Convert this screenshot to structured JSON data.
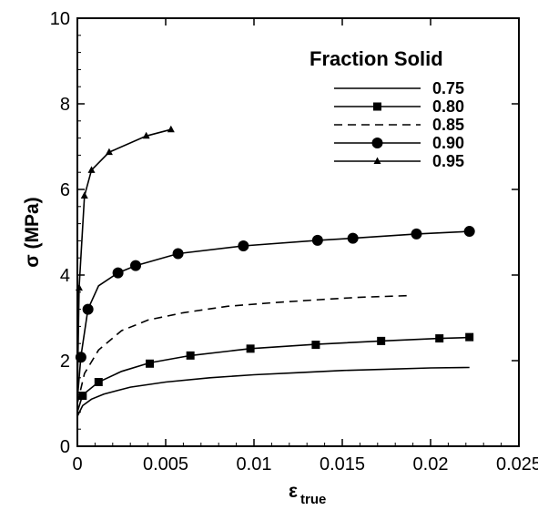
{
  "chart_data": {
    "type": "line",
    "xlabel": "ε",
    "xlabel_sub": "true",
    "ylabel": "σ (MPa)",
    "xlim": [
      0,
      0.025
    ],
    "ylim": [
      0,
      10
    ],
    "x_ticks": [
      "0",
      "0.005",
      "0.01",
      "0.015",
      "0.02",
      "0.025"
    ],
    "y_ticks": [
      "0",
      "2",
      "4",
      "6",
      "8",
      "10"
    ],
    "x_tick_values": [
      0,
      0.005,
      0.01,
      0.015,
      0.02,
      0.025
    ],
    "y_tick_values": [
      0,
      2,
      4,
      6,
      8,
      10
    ],
    "grid": false,
    "legend_title": "Fraction Solid",
    "legend_position": "top-right",
    "series": [
      {
        "name": "0.75",
        "marker": "none",
        "dash": "solid",
        "points": [
          [
            0,
            0.7
          ],
          [
            0.0003,
            0.95
          ],
          [
            0.0008,
            1.1
          ],
          [
            0.0015,
            1.22
          ],
          [
            0.003,
            1.38
          ],
          [
            0.005,
            1.5
          ],
          [
            0.0075,
            1.6
          ],
          [
            0.01,
            1.67
          ],
          [
            0.0125,
            1.72
          ],
          [
            0.015,
            1.77
          ],
          [
            0.0175,
            1.8
          ],
          [
            0.02,
            1.83
          ],
          [
            0.0222,
            1.84
          ]
        ],
        "marker_points": []
      },
      {
        "name": "0.80",
        "marker": "square",
        "dash": "solid",
        "points": [
          [
            0,
            0.8
          ],
          [
            0.0003,
            1.2
          ],
          [
            0.0012,
            1.5
          ],
          [
            0.0025,
            1.75
          ],
          [
            0.0041,
            1.95
          ],
          [
            0.0064,
            2.12
          ],
          [
            0.0098,
            2.28
          ],
          [
            0.0135,
            2.38
          ],
          [
            0.0172,
            2.46
          ],
          [
            0.0205,
            2.52
          ],
          [
            0.0222,
            2.54
          ]
        ],
        "marker_points": [
          [
            0.0003,
            1.18
          ],
          [
            0.0012,
            1.5
          ],
          [
            0.0041,
            1.93
          ],
          [
            0.0064,
            2.12
          ],
          [
            0.0098,
            2.28
          ],
          [
            0.0135,
            2.37
          ],
          [
            0.0172,
            2.46
          ],
          [
            0.0205,
            2.52
          ],
          [
            0.0222,
            2.55
          ]
        ]
      },
      {
        "name": "0.85",
        "marker": "none",
        "dash": "dashed",
        "points": [
          [
            0,
            1.0
          ],
          [
            0.0004,
            1.7
          ],
          [
            0.0012,
            2.25
          ],
          [
            0.0025,
            2.7
          ],
          [
            0.004,
            2.95
          ],
          [
            0.006,
            3.12
          ],
          [
            0.0085,
            3.27
          ],
          [
            0.011,
            3.35
          ],
          [
            0.0135,
            3.42
          ],
          [
            0.016,
            3.48
          ],
          [
            0.0188,
            3.52
          ]
        ],
        "marker_points": []
      },
      {
        "name": "0.90",
        "marker": "circle",
        "dash": "solid",
        "points": [
          [
            0,
            1.1
          ],
          [
            0.0002,
            2.1
          ],
          [
            0.0006,
            3.2
          ],
          [
            0.0012,
            3.75
          ],
          [
            0.0023,
            4.05
          ],
          [
            0.0033,
            4.22
          ],
          [
            0.0057,
            4.5
          ],
          [
            0.0094,
            4.68
          ],
          [
            0.0136,
            4.81
          ],
          [
            0.0156,
            4.86
          ],
          [
            0.0192,
            4.96
          ],
          [
            0.0222,
            5.02
          ]
        ],
        "marker_points": [
          [
            0.0002,
            2.08
          ],
          [
            0.0006,
            3.2
          ],
          [
            0.0023,
            4.05
          ],
          [
            0.0033,
            4.22
          ],
          [
            0.0057,
            4.5
          ],
          [
            0.0094,
            4.68
          ],
          [
            0.0136,
            4.81
          ],
          [
            0.0156,
            4.86
          ],
          [
            0.0192,
            4.96
          ],
          [
            0.0222,
            5.02
          ]
        ]
      },
      {
        "name": "0.95",
        "marker": "triangle",
        "dash": "solid",
        "points": [
          [
            0,
            1.2
          ],
          [
            0.0001,
            3.7
          ],
          [
            0.0004,
            5.85
          ],
          [
            0.0008,
            6.45
          ],
          [
            0.0018,
            6.87
          ],
          [
            0.0039,
            7.25
          ],
          [
            0.0053,
            7.4
          ]
        ],
        "marker_points": [
          [
            0.0001,
            3.7
          ],
          [
            0.0004,
            5.85
          ],
          [
            0.0008,
            6.45
          ],
          [
            0.0018,
            6.87
          ],
          [
            0.0039,
            7.25
          ],
          [
            0.0053,
            7.4
          ]
        ]
      }
    ]
  }
}
